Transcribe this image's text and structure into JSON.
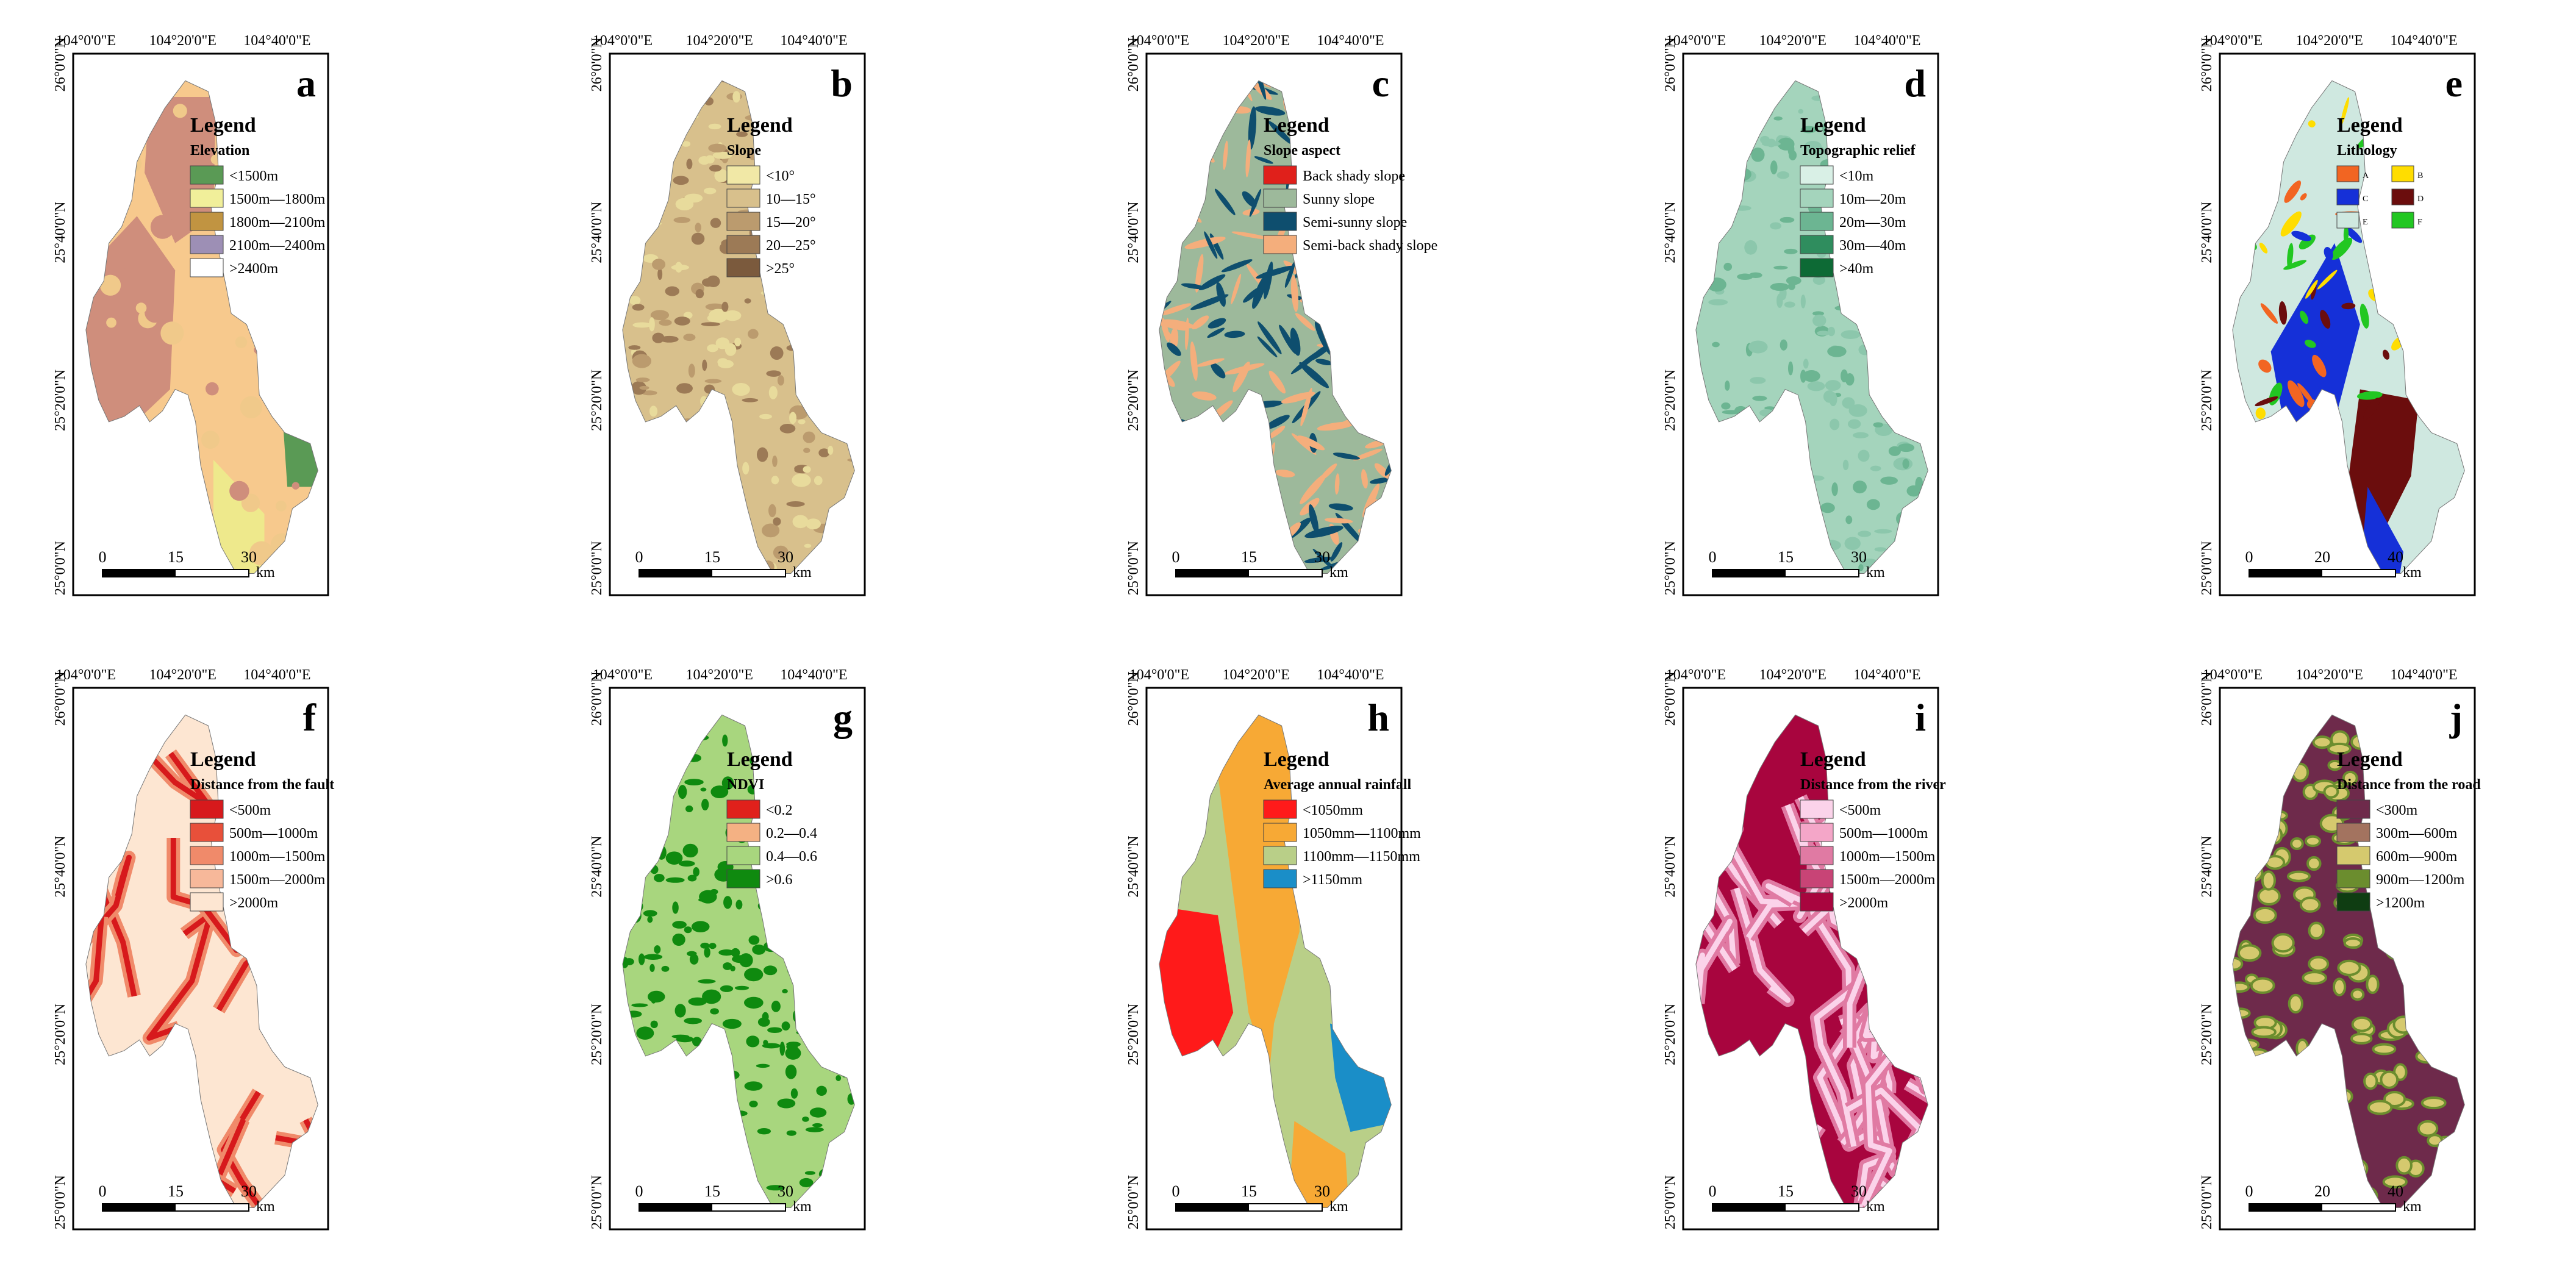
{
  "coords": {
    "lon": [
      "104°0'0\"E",
      "104°20'0\"E",
      "104°40'0\"E"
    ],
    "lat": [
      "26°0'0\"N",
      "25°40'0\"N",
      "25°20'0\"N",
      "25°0'0\"N"
    ]
  },
  "panels": [
    {
      "letter": "a",
      "style": "zones",
      "legend_title": "Elevation",
      "classes": [
        {
          "label": "<1500m",
          "color": "#5a9a55"
        },
        {
          "label": "1500m—1800m",
          "color": "#f1ef9a"
        },
        {
          "label": "1800m—2100m",
          "color": "#c19441"
        },
        {
          "label": "2100m—2400m",
          "color": "#9d8fb5"
        },
        {
          "label": ">2400m",
          "color": "#ffffff"
        }
      ],
      "map_colors": [
        "#f7c98d",
        "#cf8e7c",
        "#eee98c",
        "#5a9a55",
        "#f0c98a"
      ],
      "scale": [
        "0",
        "15",
        "30",
        "km"
      ]
    },
    {
      "letter": "b",
      "style": "patches",
      "legend_title": "Slope",
      "classes": [
        {
          "label": "<10°",
          "color": "#f1e8a6"
        },
        {
          "label": "10—15°",
          "color": "#d8c08c"
        },
        {
          "label": "15—20°",
          "color": "#bb9b6e"
        },
        {
          "label": "20—25°",
          "color": "#9c7a56"
        },
        {
          "label": ">25°",
          "color": "#7b5a3d"
        }
      ],
      "map_colors": [
        "#d8c08c",
        "#bb9b6e",
        "#e8db9c",
        "#9c7a56"
      ],
      "scale": [
        "0",
        "15",
        "30",
        "km"
      ]
    },
    {
      "letter": "c",
      "style": "streaks",
      "legend_title": "Slope aspect",
      "classes": [
        {
          "label": "Back shady slope",
          "color": "#e0201b"
        },
        {
          "label": "Sunny slope",
          "color": "#9db99b"
        },
        {
          "label": "Semi-sunny slope",
          "color": "#0e4e6e"
        },
        {
          "label": "Semi-back shady slope",
          "color": "#f4ae7c"
        }
      ],
      "map_colors": [
        "#9db99b",
        "#0e4e6e",
        "#f4ae7c"
      ],
      "scale": [
        "0",
        "15",
        "30",
        "km"
      ]
    },
    {
      "letter": "d",
      "style": "patches",
      "legend_title": "Topographic relief",
      "classes": [
        {
          "label": "<10m",
          "color": "#d9f0e6"
        },
        {
          "label": "10m—20m",
          "color": "#a4d4bc"
        },
        {
          "label": "20m—30m",
          "color": "#6cb592"
        },
        {
          "label": "30m—40m",
          "color": "#2f8d5e"
        },
        {
          "label": ">40m",
          "color": "#0d6a35"
        }
      ],
      "map_colors": [
        "#a4d4bc",
        "#8cc7ac",
        "#6cb592"
      ],
      "scale": [
        "0",
        "15",
        "30",
        "km"
      ]
    },
    {
      "letter": "e",
      "style": "geology",
      "legend_title": "Lithology",
      "classes": [
        {
          "label": "A",
          "color": "#f26522"
        },
        {
          "label": "B",
          "color": "#ffdd00"
        },
        {
          "label": "C",
          "color": "#1530d8"
        },
        {
          "label": "D",
          "color": "#6b0d0d"
        },
        {
          "label": "E",
          "color": "#cfe8e0"
        },
        {
          "label": "F",
          "color": "#22c722"
        }
      ],
      "map_colors": [
        "#cfe8e0",
        "#1530d8",
        "#22c722",
        "#6b0d0d",
        "#ffdd00",
        "#f26522"
      ],
      "scale": [
        "0",
        "20",
        "40",
        "km"
      ]
    },
    {
      "letter": "f",
      "style": "lines",
      "legend_title": "Distance from the fault",
      "classes": [
        {
          "label": "<500m",
          "color": "#d7191c"
        },
        {
          "label": "500m—1000m",
          "color": "#e8503a"
        },
        {
          "label": "1000m—1500m",
          "color": "#f08a6a"
        },
        {
          "label": "1500m—2000m",
          "color": "#f7b89a"
        },
        {
          "label": ">2000m",
          "color": "#fde6d2"
        }
      ],
      "map_colors": [
        "#fde6d2",
        "#d7191c",
        "#f08a6a"
      ],
      "scale": [
        "0",
        "15",
        "30",
        "km"
      ]
    },
    {
      "letter": "g",
      "style": "patches",
      "legend_title": "NDVI",
      "classes": [
        {
          "label": "<0.2",
          "color": "#e0201b"
        },
        {
          "label": "0.2—0.4",
          "color": "#f4b183"
        },
        {
          "label": "0.4—0.6",
          "color": "#a8d67e"
        },
        {
          "label": ">0.6",
          "color": "#0f8a0f"
        }
      ],
      "map_colors": [
        "#a8d67e",
        "#0f8a0f",
        "#0f8a0f"
      ],
      "scale": [
        "0",
        "15",
        "30",
        "km"
      ]
    },
    {
      "letter": "h",
      "style": "zones",
      "legend_title": "Average annual rainfall",
      "classes": [
        {
          "label": "<1050mm",
          "color": "#ff1a1a"
        },
        {
          "label": "1050mm—1100mm",
          "color": "#f7a935"
        },
        {
          "label": "1100mm—1150mm",
          "color": "#b9cf88"
        },
        {
          "label": ">1150mm",
          "color": "#1a8ec8"
        }
      ],
      "map_colors": [
        "#b9cf88",
        "#f7a935",
        "#ff1a1a",
        "#1a8ec8",
        "#f7a935"
      ],
      "scale": [
        "0",
        "15",
        "30",
        "km"
      ]
    },
    {
      "letter": "i",
      "style": "lines",
      "legend_title": "Distance from the river",
      "classes": [
        {
          "label": "<500m",
          "color": "#fbd3ea"
        },
        {
          "label": "500m—1000m",
          "color": "#f4a6c8"
        },
        {
          "label": "1000m—1500m",
          "color": "#e07aa3"
        },
        {
          "label": "1500m—2000m",
          "color": "#c84476"
        },
        {
          "label": ">2000m",
          "color": "#a8053e"
        }
      ],
      "map_colors": [
        "#a8053e",
        "#fbd3ea",
        "#e07aa3"
      ],
      "scale": [
        "0",
        "15",
        "30",
        "km"
      ]
    },
    {
      "letter": "j",
      "style": "cells",
      "legend_title": "Distance from the road",
      "classes": [
        {
          "label": "<300m",
          "color": "#6e2a4b"
        },
        {
          "label": "300m—600m",
          "color": "#a3735f"
        },
        {
          "label": "600m—900m",
          "color": "#d5c96e"
        },
        {
          "label": "900m—1200m",
          "color": "#6b8d2e"
        },
        {
          "label": ">1200m",
          "color": "#0f3d12"
        }
      ],
      "map_colors": [
        "#6e2a4b",
        "#d5c96e",
        "#6b8d2e"
      ],
      "scale": [
        "0",
        "20",
        "40",
        "km"
      ]
    }
  ]
}
